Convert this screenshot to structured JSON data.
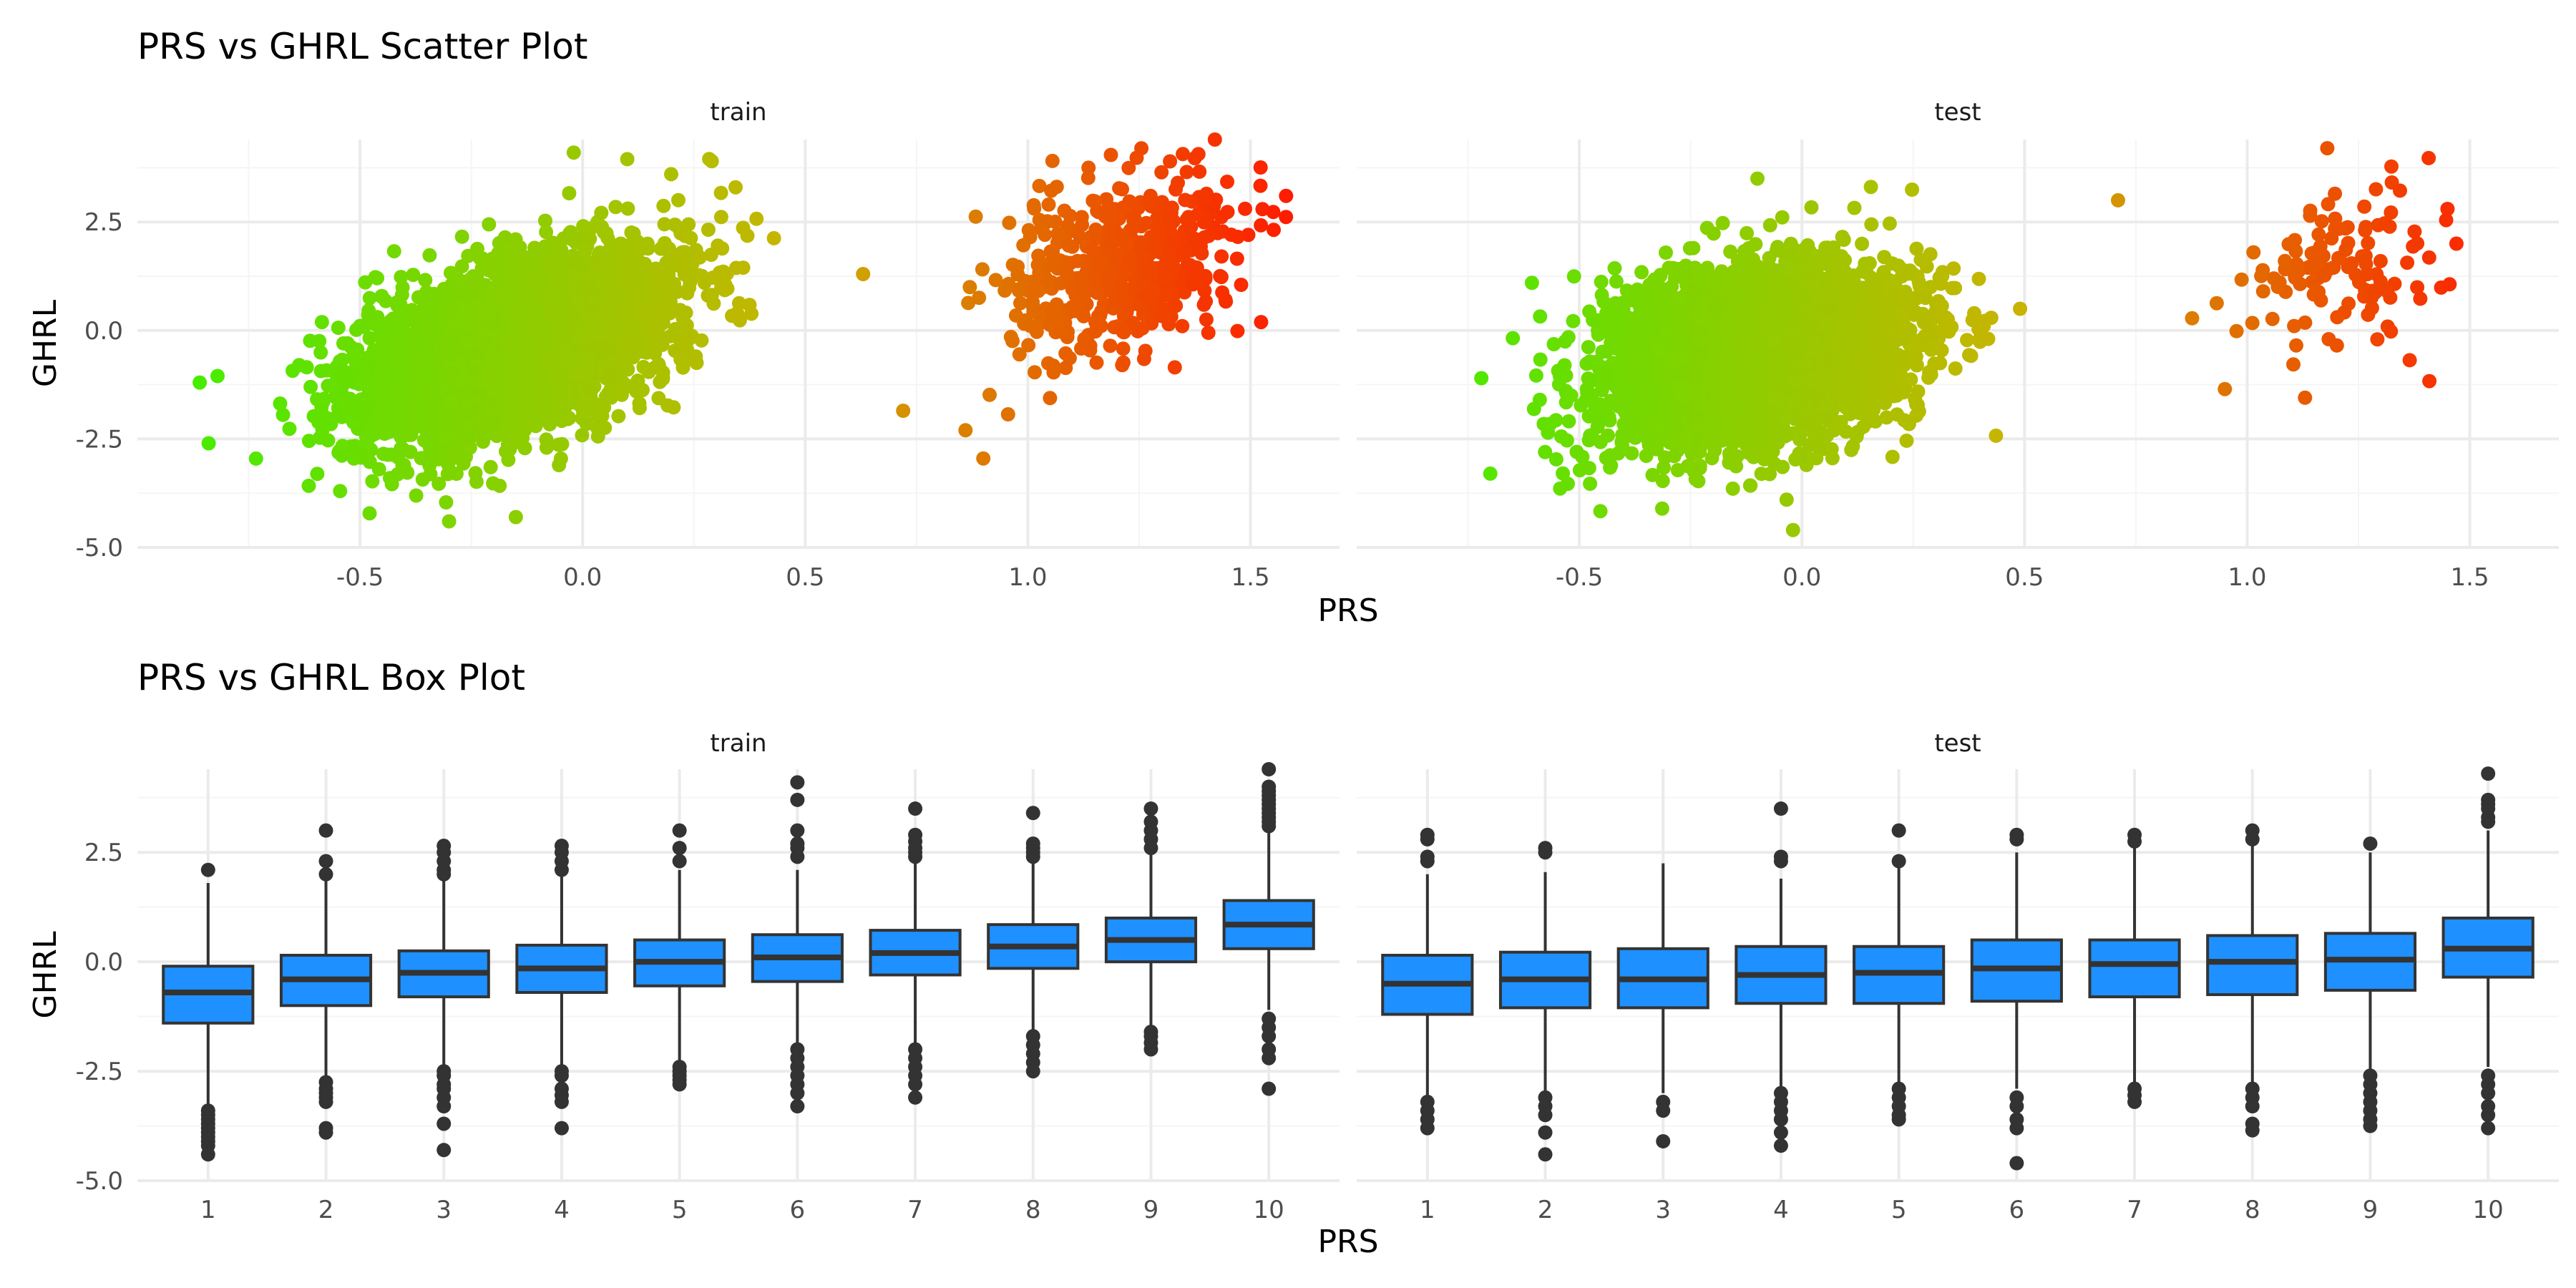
{
  "figure": {
    "scatter_title": "PRS vs GHRL Scatter Plot",
    "box_title": "PRS vs GHRL Box Plot"
  },
  "colors": {
    "gradient_low": "#44ee00",
    "gradient_mid": "#c8b400",
    "gradient_high": "#ff1a00",
    "box_fill": "#1e90ff",
    "box_line": "#333333",
    "grid_major": "#ebebeb",
    "grid_minor": "#f5f5f5",
    "text": "#4d4d4d"
  },
  "chart_data": [
    {
      "type": "scatter",
      "title": "PRS vs GHRL Scatter Plot",
      "xlabel": "PRS",
      "ylabel": "GHRL",
      "xlim": [
        -1.0,
        1.7
      ],
      "ylim": [
        -5.0,
        4.4
      ],
      "x_ticks": [
        -0.5,
        0.0,
        0.5,
        1.0,
        1.5
      ],
      "x_tick_labels": [
        "-0.5",
        "0.0",
        "0.5",
        "1.0",
        "1.5"
      ],
      "y_ticks": [
        -5.0,
        -2.5,
        0.0,
        2.5
      ],
      "y_tick_labels": [
        "-5.0",
        "-2.5",
        "0.0",
        "2.5"
      ],
      "color_by": "PRS",
      "grid": true,
      "legend": "none",
      "panels": [
        {
          "name": "train",
          "main_cluster": {
            "x_center": -0.15,
            "x_sd": 0.18,
            "x_range": [
              -0.88,
              0.52
            ],
            "y_at_x0": 0.1,
            "slope": 3.0,
            "y_sd": 0.95
          },
          "outlier_cluster": {
            "x_center": 1.22,
            "x_sd": 0.13,
            "x_range": [
              0.62,
              1.6
            ],
            "y_center": 1.55,
            "slope": 2.4,
            "y_sd": 1.0
          },
          "extreme_points": [
            {
              "x": -0.86,
              "y": -1.2
            },
            {
              "x": -0.84,
              "y": -2.6
            },
            {
              "x": -0.82,
              "y": -1.05
            },
            {
              "x": -0.02,
              "y": 4.1
            },
            {
              "x": 0.29,
              "y": 3.9
            },
            {
              "x": -0.3,
              "y": -4.4
            },
            {
              "x": -0.15,
              "y": -4.3
            },
            {
              "x": 1.42,
              "y": 4.4
            },
            {
              "x": 1.58,
              "y": 3.1
            },
            {
              "x": 0.9,
              "y": -2.95
            },
            {
              "x": 0.72,
              "y": -1.85
            },
            {
              "x": 0.63,
              "y": 1.3
            },
            {
              "x": 1.33,
              "y": -0.85
            },
            {
              "x": 0.86,
              "y": -2.3
            }
          ]
        },
        {
          "name": "test",
          "main_cluster": {
            "x_center": -0.1,
            "x_sd": 0.17,
            "x_range": [
              -0.74,
              0.48
            ],
            "y_at_x0": -0.45,
            "slope": 1.5,
            "y_sd": 1.0
          },
          "outlier_cluster": {
            "x_center": 1.2,
            "x_sd": 0.14,
            "x_range": [
              0.7,
              1.5
            ],
            "y_center": 1.25,
            "slope": 2.0,
            "y_sd": 0.95
          },
          "extreme_points": [
            {
              "x": -0.72,
              "y": -1.1
            },
            {
              "x": -0.7,
              "y": -3.3
            },
            {
              "x": -0.1,
              "y": 3.5
            },
            {
              "x": -0.02,
              "y": -4.6
            },
            {
              "x": 0.49,
              "y": 0.5
            },
            {
              "x": 0.71,
              "y": 3.0
            },
            {
              "x": 1.18,
              "y": 4.2
            },
            {
              "x": 0.95,
              "y": -1.35
            },
            {
              "x": 1.13,
              "y": -1.55
            },
            {
              "x": 1.45,
              "y": 2.8
            },
            {
              "x": 1.47,
              "y": 2.0
            }
          ]
        }
      ]
    },
    {
      "type": "box",
      "title": "PRS vs GHRL Box Plot",
      "xlabel": "PRS",
      "ylabel": "GHRL",
      "categories": [
        "1",
        "2",
        "3",
        "4",
        "5",
        "6",
        "7",
        "8",
        "9",
        "10"
      ],
      "ylim": [
        -5.0,
        4.4
      ],
      "y_ticks": [
        -5.0,
        -2.5,
        0.0,
        2.5
      ],
      "y_tick_labels": [
        "-5.0",
        "-2.5",
        "0.0",
        "2.5"
      ],
      "grid": true,
      "panels": [
        {
          "name": "train",
          "boxes": [
            {
              "q1": -1.4,
              "median": -0.7,
              "q3": -0.1,
              "low": -3.3,
              "high": 1.8,
              "outliers": [
                2.1,
                -3.4,
                -3.5,
                -3.6,
                -3.7,
                -3.8,
                -3.9,
                -4.0,
                -4.1,
                -4.2,
                -4.4
              ]
            },
            {
              "q1": -1.0,
              "median": -0.4,
              "q3": 0.15,
              "low": -2.7,
              "high": 1.85,
              "outliers": [
                3.0,
                2.3,
                2.0,
                -2.75,
                -2.9,
                -3.0,
                -3.1,
                -3.2,
                -3.8,
                -3.9
              ]
            },
            {
              "q1": -0.8,
              "median": -0.25,
              "q3": 0.25,
              "low": -2.4,
              "high": 1.9,
              "outliers": [
                2.65,
                2.5,
                2.3,
                2.1,
                2.0,
                -2.5,
                -2.6,
                -2.8,
                -2.9,
                -3.1,
                -3.3,
                -3.7,
                -4.3
              ]
            },
            {
              "q1": -0.7,
              "median": -0.15,
              "q3": 0.38,
              "low": -2.4,
              "high": 2.0,
              "outliers": [
                2.65,
                2.5,
                2.3,
                2.1,
                -2.5,
                -2.6,
                -2.9,
                -3.05,
                -3.2,
                -3.8
              ]
            },
            {
              "q1": -0.55,
              "median": 0.0,
              "q3": 0.5,
              "low": -2.3,
              "high": 2.1,
              "outliers": [
                3.0,
                2.6,
                2.3,
                -2.4,
                -2.5,
                -2.6,
                -2.7,
                -2.8
              ]
            },
            {
              "q1": -0.45,
              "median": 0.1,
              "q3": 0.62,
              "low": -1.9,
              "high": 2.1,
              "outliers": [
                4.1,
                3.7,
                3.0,
                2.7,
                2.6,
                2.4,
                -2.0,
                -2.2,
                -2.4,
                -2.6,
                -2.8,
                -3.0,
                -3.3
              ]
            },
            {
              "q1": -0.3,
              "median": 0.2,
              "q3": 0.72,
              "low": -1.9,
              "high": 2.3,
              "outliers": [
                3.5,
                2.9,
                2.75,
                2.6,
                2.5,
                2.4,
                -2.0,
                -2.2,
                -2.4,
                -2.6,
                -2.8,
                -3.1
              ]
            },
            {
              "q1": -0.15,
              "median": 0.35,
              "q3": 0.85,
              "low": -1.6,
              "high": 2.3,
              "outliers": [
                3.4,
                2.7,
                2.6,
                2.5,
                2.4,
                -1.7,
                -1.9,
                -2.1,
                -2.3,
                -2.5
              ]
            },
            {
              "q1": 0.0,
              "median": 0.5,
              "q3": 1.0,
              "low": -1.5,
              "high": 2.5,
              "outliers": [
                3.5,
                3.2,
                3.0,
                2.8,
                2.6,
                -1.6,
                -1.7,
                -1.85,
                -2.0
              ]
            },
            {
              "q1": 0.3,
              "median": 0.85,
              "q3": 1.4,
              "low": -1.1,
              "high": 3.0,
              "outliers": [
                4.4,
                4.0,
                3.9,
                3.8,
                3.7,
                3.6,
                3.5,
                3.4,
                3.3,
                3.2,
                3.1,
                -1.3,
                -1.5,
                -1.7,
                -2.0,
                -2.2,
                -2.9
              ]
            }
          ]
        },
        {
          "name": "test",
          "boxes": [
            {
              "q1": -1.2,
              "median": -0.5,
              "q3": 0.15,
              "low": -3.1,
              "high": 2.0,
              "outliers": [
                2.9,
                2.8,
                2.4,
                2.3,
                -3.2,
                -3.4,
                -3.6,
                -3.8
              ]
            },
            {
              "q1": -1.05,
              "median": -0.4,
              "q3": 0.22,
              "low": -3.0,
              "high": 2.05,
              "outliers": [
                2.6,
                2.5,
                -3.1,
                -3.3,
                -3.5,
                -3.9,
                -4.4
              ]
            },
            {
              "q1": -1.05,
              "median": -0.4,
              "q3": 0.3,
              "low": -3.0,
              "high": 2.25,
              "outliers": [
                -3.2,
                -3.4,
                -4.1
              ]
            },
            {
              "q1": -0.95,
              "median": -0.3,
              "q3": 0.35,
              "low": -2.9,
              "high": 1.9,
              "outliers": [
                3.5,
                2.4,
                2.3,
                -3.0,
                -3.2,
                -3.4,
                -3.6,
                -3.9,
                -4.2
              ]
            },
            {
              "q1": -0.95,
              "median": -0.25,
              "q3": 0.35,
              "low": -2.85,
              "high": 2.25,
              "outliers": [
                3.0,
                2.3,
                -2.9,
                -3.1,
                -3.3,
                -3.5,
                -3.6
              ]
            },
            {
              "q1": -0.9,
              "median": -0.15,
              "q3": 0.5,
              "low": -2.9,
              "high": 2.5,
              "outliers": [
                2.9,
                2.8,
                -3.1,
                -3.3,
                -3.6,
                -3.8,
                -4.6
              ]
            },
            {
              "q1": -0.8,
              "median": -0.05,
              "q3": 0.5,
              "low": -2.8,
              "high": 2.6,
              "outliers": [
                2.9,
                2.75,
                -2.9,
                -3.05,
                -3.2
              ]
            },
            {
              "q1": -0.75,
              "median": 0.0,
              "q3": 0.6,
              "low": -2.8,
              "high": 2.7,
              "outliers": [
                3.0,
                2.8,
                -2.9,
                -3.1,
                -3.3,
                -3.7,
                -3.85
              ]
            },
            {
              "q1": -0.65,
              "median": 0.05,
              "q3": 0.65,
              "low": -2.5,
              "high": 2.5,
              "outliers": [
                2.7,
                -2.6,
                -2.8,
                -3.0,
                -3.2,
                -3.4,
                -3.6,
                -3.75
              ]
            },
            {
              "q1": -0.35,
              "median": 0.3,
              "q3": 1.0,
              "low": -2.4,
              "high": 3.0,
              "outliers": [
                4.3,
                3.7,
                3.6,
                3.5,
                3.3,
                3.2,
                -2.6,
                -2.8,
                -3.0,
                -3.3,
                -3.5,
                -3.8
              ]
            }
          ]
        }
      ]
    }
  ]
}
